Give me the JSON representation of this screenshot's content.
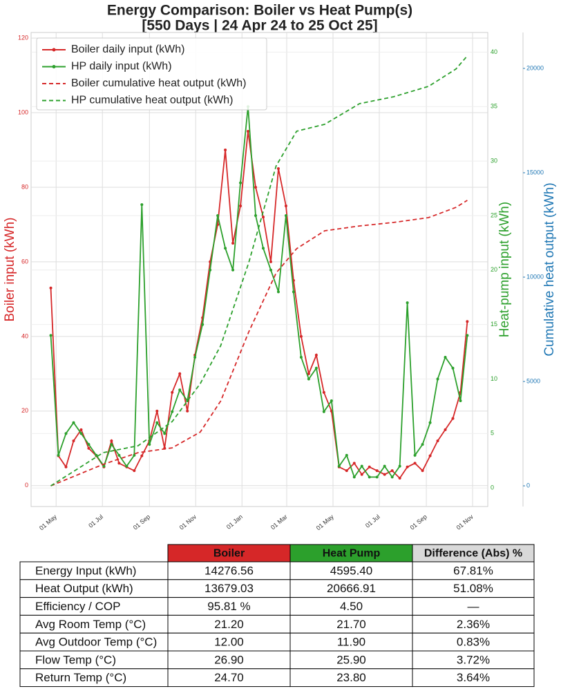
{
  "chart_data": {
    "type": "line",
    "title": "Energy Comparison: Boiler vs Heat Pump(s)",
    "subtitle": "[550 Days | 24 Apr 24 to 25 Oct 25]",
    "ylabel": "Boiler input (kWh)",
    "y2label": "Heat-pump input (kWh)",
    "y3label": "Cumulative heat output (kWh)",
    "xlim": [
      -26,
      576
    ],
    "xticks": [
      {
        "value": 7,
        "label": "01 May"
      },
      {
        "value": 68,
        "label": "01 Jul"
      },
      {
        "value": 130,
        "label": "01 Sep"
      },
      {
        "value": 191,
        "label": "01 Nov"
      },
      {
        "value": 252,
        "label": "01 Jan"
      },
      {
        "value": 311,
        "label": "01 Mar"
      },
      {
        "value": 372,
        "label": "01 May"
      },
      {
        "value": 433,
        "label": "01 Jul"
      },
      {
        "value": 495,
        "label": "01 Sep"
      },
      {
        "value": 556,
        "label": "01 Nov"
      }
    ],
    "ylim": [
      -5.6,
      121.5
    ],
    "yticks": [
      0,
      20,
      40,
      60,
      80,
      100,
      120
    ],
    "y2lim": [
      -1.7,
      41.8
    ],
    "y2ticks": [
      0,
      5,
      10,
      15,
      20,
      25,
      30,
      35,
      40
    ],
    "y3lim": [
      -990,
      21720
    ],
    "y3ticks": [
      0,
      5000,
      10000,
      15000,
      20000
    ],
    "grid": true,
    "legend": "upper left",
    "series": [
      {
        "name": "Boiler daily input (kWh)",
        "color": "#d62728",
        "style": "solid",
        "axis": "y",
        "x": [
          0,
          10,
          20,
          30,
          40,
          50,
          60,
          70,
          80,
          90,
          100,
          110,
          120,
          130,
          140,
          150,
          160,
          170,
          180,
          190,
          200,
          210,
          220,
          230,
          240,
          250,
          260,
          270,
          280,
          290,
          300,
          310,
          320,
          330,
          340,
          350,
          360,
          370,
          380,
          390,
          400,
          410,
          420,
          430,
          440,
          450,
          460,
          470,
          480,
          490,
          500,
          510,
          520,
          530,
          540,
          549
        ],
        "values": [
          53,
          8,
          5,
          12,
          15,
          10,
          8,
          5,
          12,
          6,
          5,
          4,
          8,
          12,
          20,
          10,
          25,
          30,
          20,
          35,
          45,
          60,
          70,
          90,
          65,
          75,
          95,
          80,
          72,
          60,
          85,
          75,
          55,
          40,
          30,
          35,
          25,
          20,
          5,
          4,
          6,
          3,
          5,
          4,
          3,
          4,
          2,
          5,
          6,
          4,
          8,
          12,
          15,
          18,
          25,
          44
        ]
      },
      {
        "name": "HP daily input (kWh)",
        "color": "#2ca02c",
        "style": "solid",
        "axis": "y2",
        "x": [
          0,
          10,
          20,
          30,
          40,
          50,
          60,
          70,
          80,
          90,
          100,
          110,
          120,
          130,
          140,
          150,
          160,
          170,
          180,
          190,
          200,
          210,
          220,
          230,
          240,
          250,
          260,
          270,
          280,
          290,
          300,
          310,
          320,
          330,
          340,
          350,
          360,
          370,
          380,
          390,
          400,
          410,
          420,
          430,
          440,
          450,
          460,
          470,
          480,
          490,
          500,
          510,
          520,
          530,
          540,
          549
        ],
        "values": [
          14,
          3,
          5,
          6,
          5,
          4,
          3,
          2,
          4,
          3,
          2,
          3,
          26,
          4,
          6,
          5,
          7,
          9,
          8,
          12,
          15,
          20,
          25,
          22,
          20,
          28,
          35,
          25,
          22,
          20,
          18,
          25,
          18,
          12,
          10,
          11,
          7,
          8,
          2,
          3,
          1,
          2,
          1,
          1,
          2,
          1,
          2,
          17,
          3,
          4,
          6,
          10,
          12,
          11,
          8,
          14
        ]
      },
      {
        "name": "Boiler cumulative heat output (kWh)",
        "color": "#d62728",
        "style": "dashed",
        "axis": "y3",
        "x": [
          0,
          69,
          115,
          160,
          197,
          224,
          261,
          297,
          324,
          361,
          407,
          452,
          498,
          534,
          549
        ],
        "values": [
          0,
          1030,
          1590,
          1820,
          2580,
          4070,
          7380,
          10200,
          11360,
          12220,
          12450,
          12620,
          12850,
          13340,
          13679
        ]
      },
      {
        "name": "HP cumulative heat output (kWh)",
        "color": "#2ca02c",
        "style": "dashed",
        "axis": "y3",
        "x": [
          0,
          69,
          115,
          160,
          197,
          224,
          261,
          297,
          324,
          361,
          407,
          452,
          498,
          534,
          549
        ],
        "values": [
          0,
          1590,
          1920,
          3080,
          4900,
          6720,
          10700,
          15330,
          16990,
          17320,
          18310,
          18640,
          19140,
          19970,
          20600
        ]
      }
    ]
  },
  "table": {
    "columns": [
      "Boiler",
      "Heat Pump",
      "Difference (Abs) %"
    ],
    "column_colors": [
      "#d62728",
      "#2ca02c",
      "#d9d9d9"
    ],
    "rows": [
      [
        "Energy Input (kWh)",
        "14276.56",
        "4595.40",
        "67.81%"
      ],
      [
        "Heat Output (kWh)",
        "13679.03",
        "20666.91",
        "51.08%"
      ],
      [
        "Efficiency / COP",
        "95.81 %",
        "4.50",
        "—"
      ],
      [
        "Avg Room Temp (°C)",
        "21.20",
        "21.70",
        "2.36%"
      ],
      [
        "Avg Outdoor Temp (°C)",
        "12.00",
        "11.90",
        "0.83%"
      ],
      [
        "Flow Temp (°C)",
        "26.90",
        "25.90",
        "3.72%"
      ],
      [
        "Return Temp (°C)",
        "24.70",
        "23.80",
        "3.64%"
      ]
    ]
  }
}
